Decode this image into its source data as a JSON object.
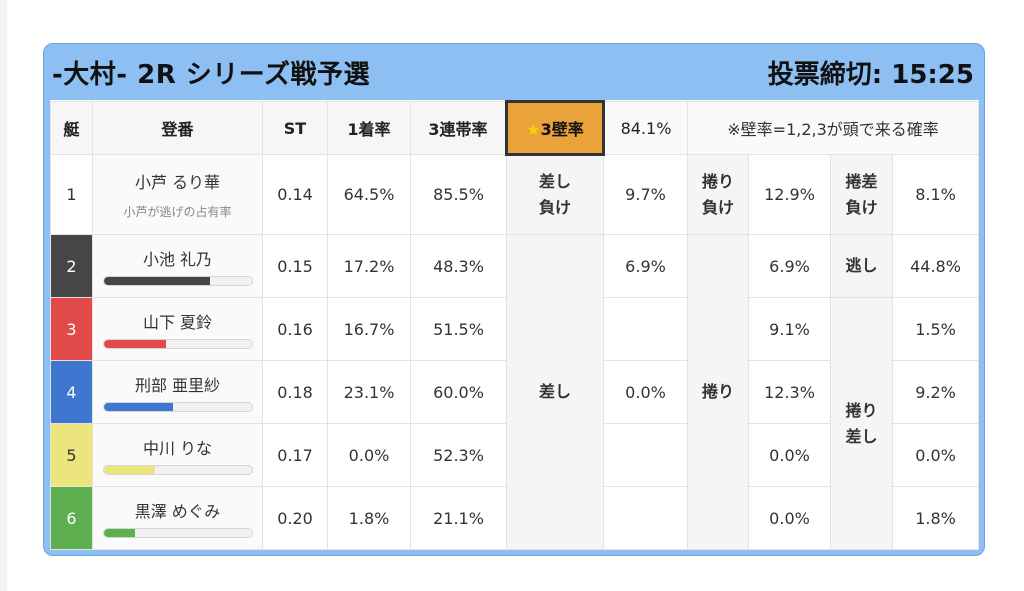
{
  "header": {
    "title": "-大村- 2R シリーズ戦予選",
    "deadline": "投票締切: 15:25"
  },
  "columns": {
    "boat": "艇",
    "registration": "登番",
    "st": "ST",
    "first_rate": "1着率",
    "trio_rate": "3連帯率",
    "sanpeki_star": "★",
    "sanpeki_label": "3壁率",
    "sanpeki_value": "84.1%",
    "note": "※壁率=1,2,3が頭で来る確率"
  },
  "rows": [
    {
      "boat": "1",
      "name": "小芦 るり華",
      "sub": "小芦が逃げの占有率",
      "st": "0.14",
      "first": "64.5%",
      "trio": "85.5%"
    },
    {
      "boat": "2",
      "name": "小池 礼乃",
      "st": "0.15",
      "first": "17.2%",
      "trio": "48.3%",
      "bar": 0.72
    },
    {
      "boat": "3",
      "name": "山下 夏鈴",
      "st": "0.16",
      "first": "16.7%",
      "trio": "51.5%",
      "bar": 0.42
    },
    {
      "boat": "4",
      "name": "刑部 亜里紗",
      "st": "0.18",
      "first": "23.1%",
      "trio": "60.0%",
      "bar": 0.47
    },
    {
      "boat": "5",
      "name": "中川 りな",
      "st": "0.17",
      "first": "0.0%",
      "trio": "52.3%",
      "bar": 0.35
    },
    {
      "boat": "6",
      "name": "黒澤 めぐみ",
      "st": "0.20",
      "first": "1.8%",
      "trio": "21.1%",
      "bar": 0.21
    }
  ],
  "pattern": {
    "sashi_make_label_1": "差し",
    "sashi_make_label_2": "負け",
    "sashi_make_value": "9.7%",
    "makuri_make_label_1": "捲り",
    "makuri_make_label_2": "負け",
    "makuri_make_value": "12.9%",
    "makusashi_make_label_1": "捲差",
    "makusashi_make_label_2": "負け",
    "makusashi_make_value": "8.1%",
    "sashi_label": "差し",
    "makuri_label": "捲り",
    "nige_label": "逃し",
    "nige_value": "44.8%",
    "makurisashi_label_1": "捲り",
    "makurisashi_label_2": "差し",
    "sashi_values": [
      "6.9%",
      "",
      "0.0%",
      "",
      ""
    ],
    "makuri_values": [
      "6.9%",
      "9.1%",
      "12.3%",
      "0.0%",
      "0.0%"
    ],
    "makurisashi_values": [
      "1.5%",
      "9.2%",
      "0.0%",
      "1.8%"
    ]
  },
  "colors": {
    "card_bg": "#8dbff3",
    "boat2": "#464646",
    "boat3": "#e24a4a",
    "boat4": "#3f76cf",
    "boat5": "#ece57d",
    "boat6": "#5daf4f",
    "sanpeki_bg": "#eaa23a"
  }
}
